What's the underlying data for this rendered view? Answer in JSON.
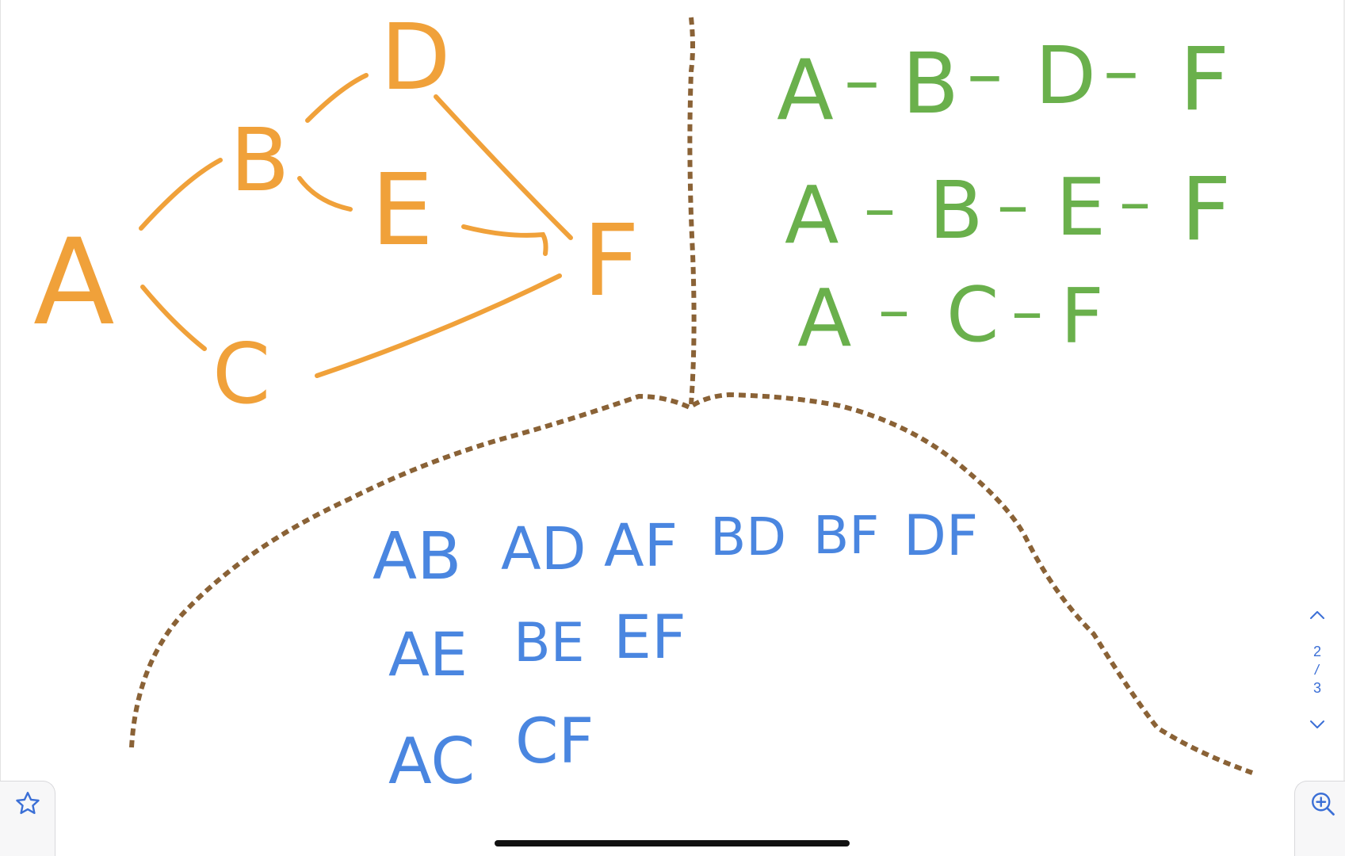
{
  "drawing": {
    "graph_nodes": [
      "A",
      "B",
      "C",
      "D",
      "E",
      "F"
    ],
    "paths": [
      {
        "nodes": [
          "A",
          "B",
          "D",
          "F"
        ]
      },
      {
        "nodes": [
          "A",
          "B",
          "E",
          "F"
        ]
      },
      {
        "nodes": [
          "A",
          "C",
          "F"
        ]
      }
    ],
    "pairs_row1": [
      "AB",
      "AD",
      "AF",
      "BD",
      "BF",
      "DF"
    ],
    "pairs_row2": [
      "AE",
      "BE",
      "EF"
    ],
    "pairs_row3": [
      "AC",
      "CF"
    ],
    "path_separator": "–",
    "colors": {
      "graph": "#F0A13A",
      "paths": "#6AB04C",
      "pairs": "#4A86E0",
      "divider": "#8A6236"
    }
  },
  "pager": {
    "current": "2",
    "total": "3",
    "up_icon": "chevron-up-icon",
    "down_icon": "chevron-down-icon"
  },
  "toolbar": {
    "left_icon": "star-icon",
    "right_icon": "zoom-in-icon"
  }
}
